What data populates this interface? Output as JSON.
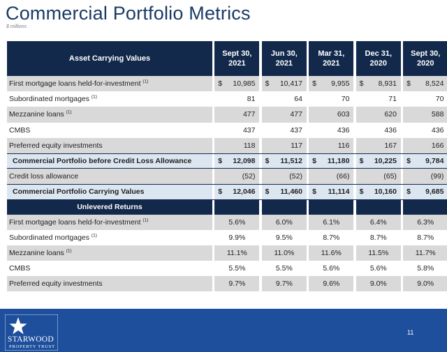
{
  "title": "Commercial Portfolio Metrics",
  "subtitle": "$ millions",
  "table": {
    "header_label": "Asset Carrying Values",
    "columns": [
      [
        "Sept 30,",
        "2021"
      ],
      [
        "Jun 30,",
        "2021"
      ],
      [
        "Mar 31,",
        "2021"
      ],
      [
        "Dec 31,",
        "2020"
      ],
      [
        "Sept 30,",
        "2020"
      ]
    ],
    "carrying_rows": [
      {
        "label": "First mortgage loans held-for-investment",
        "note": "(1)",
        "style": "grey",
        "currency": true,
        "values": [
          "10,985",
          "10,417",
          "9,955",
          "8,931",
          "8,524"
        ]
      },
      {
        "label": "Subordinated mortgages",
        "note": "(1)",
        "style": "white",
        "currency": false,
        "values": [
          "81",
          "64",
          "70",
          "71",
          "70"
        ]
      },
      {
        "label": "Mezzanine loans",
        "note": "(1)",
        "style": "grey",
        "currency": false,
        "values": [
          "477",
          "477",
          "603",
          "620",
          "588"
        ]
      },
      {
        "label": "CMBS",
        "note": "",
        "style": "white",
        "currency": false,
        "values": [
          "437",
          "437",
          "436",
          "436",
          "436"
        ]
      },
      {
        "label": "Preferred equity investments",
        "note": "",
        "style": "grey",
        "currency": false,
        "values": [
          "118",
          "117",
          "116",
          "167",
          "166"
        ]
      },
      {
        "label": "Commercial Portfolio before Credit Loss Allowance",
        "note": "",
        "style": "total",
        "currency": true,
        "values": [
          "12,098",
          "11,512",
          "11,180",
          "10,225",
          "9,784"
        ]
      },
      {
        "label": "Credit loss allowance",
        "note": "",
        "style": "grey",
        "currency": false,
        "values": [
          "(52)",
          "(52)",
          "(66)",
          "(65)",
          "(99)"
        ]
      },
      {
        "label": "Commercial Portfolio Carrying Values",
        "note": "",
        "style": "total",
        "currency": true,
        "values": [
          "12,046",
          "11,460",
          "11,114",
          "10,160",
          "9,685"
        ]
      }
    ],
    "currency_symbol": "$",
    "returns_label": "Unlevered Returns",
    "return_rows": [
      {
        "label": "First mortgage loans held-for-investment",
        "note": "(1)",
        "style": "grey",
        "values": [
          "5.6%",
          "6.0%",
          "6.1%",
          "6.4%",
          "6.3%"
        ]
      },
      {
        "label": "Subordinated mortgages",
        "note": "(1)",
        "style": "white",
        "values": [
          "9.9%",
          "9.5%",
          "8.7%",
          "8.7%",
          "8.7%"
        ]
      },
      {
        "label": "Mezzanine loans",
        "note": "(1)",
        "style": "grey",
        "values": [
          "11.1%",
          "11.0%",
          "11.6%",
          "11.5%",
          "11.7%"
        ]
      },
      {
        "label": "CMBS",
        "note": "",
        "style": "white",
        "values": [
          "5.5%",
          "5.5%",
          "5.6%",
          "5.6%",
          "5.8%"
        ]
      },
      {
        "label": "Preferred equity investments",
        "note": "",
        "style": "grey",
        "values": [
          "9.7%",
          "9.7%",
          "9.6%",
          "9.0%",
          "9.0%"
        ]
      }
    ]
  },
  "footer": {
    "logo_word": "STARWOOD",
    "logo_sub": "PROPERTY TRUST",
    "page_number": "11",
    "logo_icon": "star-logo-icon",
    "band_color": "#1e4f9c",
    "header_color": "#13294b"
  }
}
